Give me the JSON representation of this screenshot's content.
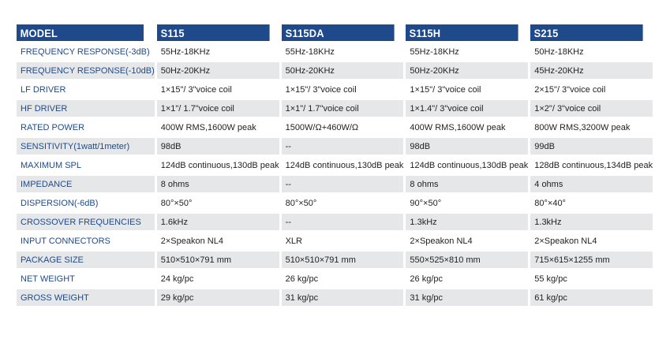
{
  "table": {
    "headers": [
      "MODEL",
      "S115",
      "S115DA",
      "S115H",
      "S215"
    ],
    "rows": [
      [
        "FREQUENCY RESPONSE(-3dB)",
        "55Hz-18KHz",
        "55Hz-18KHz",
        "55Hz-18KHz",
        "50Hz-18KHz"
      ],
      [
        "FREQUENCY RESPONSE(-10dB)",
        "50Hz-20KHz",
        "50Hz-20KHz",
        "50Hz-20KHz",
        "45Hz-20KHz"
      ],
      [
        "LF DRIVER",
        "1×15\"/ 3\"voice coil",
        "1×15\"/ 3\"voice coil",
        "1×15\"/ 3\"voice coil",
        "2×15\"/ 3\"voice coil"
      ],
      [
        "HF DRIVER",
        "1×1\"/ 1.7\"voice coil",
        "1×1\"/ 1.7\"voice coil",
        "1×1.4\"/ 3\"voice coil",
        "1×2\"/ 3\"voice coil"
      ],
      [
        "RATED POWER",
        "400W RMS,1600W peak",
        "1500W/Ω+460W/Ω",
        "400W RMS,1600W peak",
        "800W RMS,3200W peak"
      ],
      [
        "SENSITIVITY(1watt/1meter)",
        "98dB",
        "--",
        "98dB",
        "99dB"
      ],
      [
        "MAXIMUM SPL",
        "124dB continuous,130dB peak",
        "124dB continuous,130dB peak",
        "124dB continuous,130dB peak",
        "128dB continuous,134dB peak"
      ],
      [
        "IMPEDANCE",
        "8 ohms",
        "--",
        "8 ohms",
        "4 ohms"
      ],
      [
        "DISPERSION(-6dB)",
        "80°×50°",
        "80°×50°",
        "90°×50°",
        "80°×40°"
      ],
      [
        "CROSSOVER FREQUENCIES",
        "1.6kHz",
        "--",
        "1.3kHz",
        "1.3kHz"
      ],
      [
        "INPUT CONNECTORS",
        "2×Speakon NL4",
        "XLR",
        "2×Speakon NL4",
        "2×Speakon NL4"
      ],
      [
        "PACKAGE SIZE",
        "510×510×791 mm",
        "510×510×791 mm",
        "550×525×810 mm",
        "715×615×1255 mm"
      ],
      [
        "NET WEIGHT",
        "24 kg/pc",
        "26 kg/pc",
        "26 kg/pc",
        "55 kg/pc"
      ],
      [
        "GROSS WEIGHT",
        "29 kg/pc",
        "31 kg/pc",
        "31 kg/pc",
        "61 kg/pc"
      ]
    ]
  },
  "colors": {
    "header_bg": "#1e4a8c",
    "label_text": "#1e4a8c",
    "stripe": "#e6e7e9"
  }
}
